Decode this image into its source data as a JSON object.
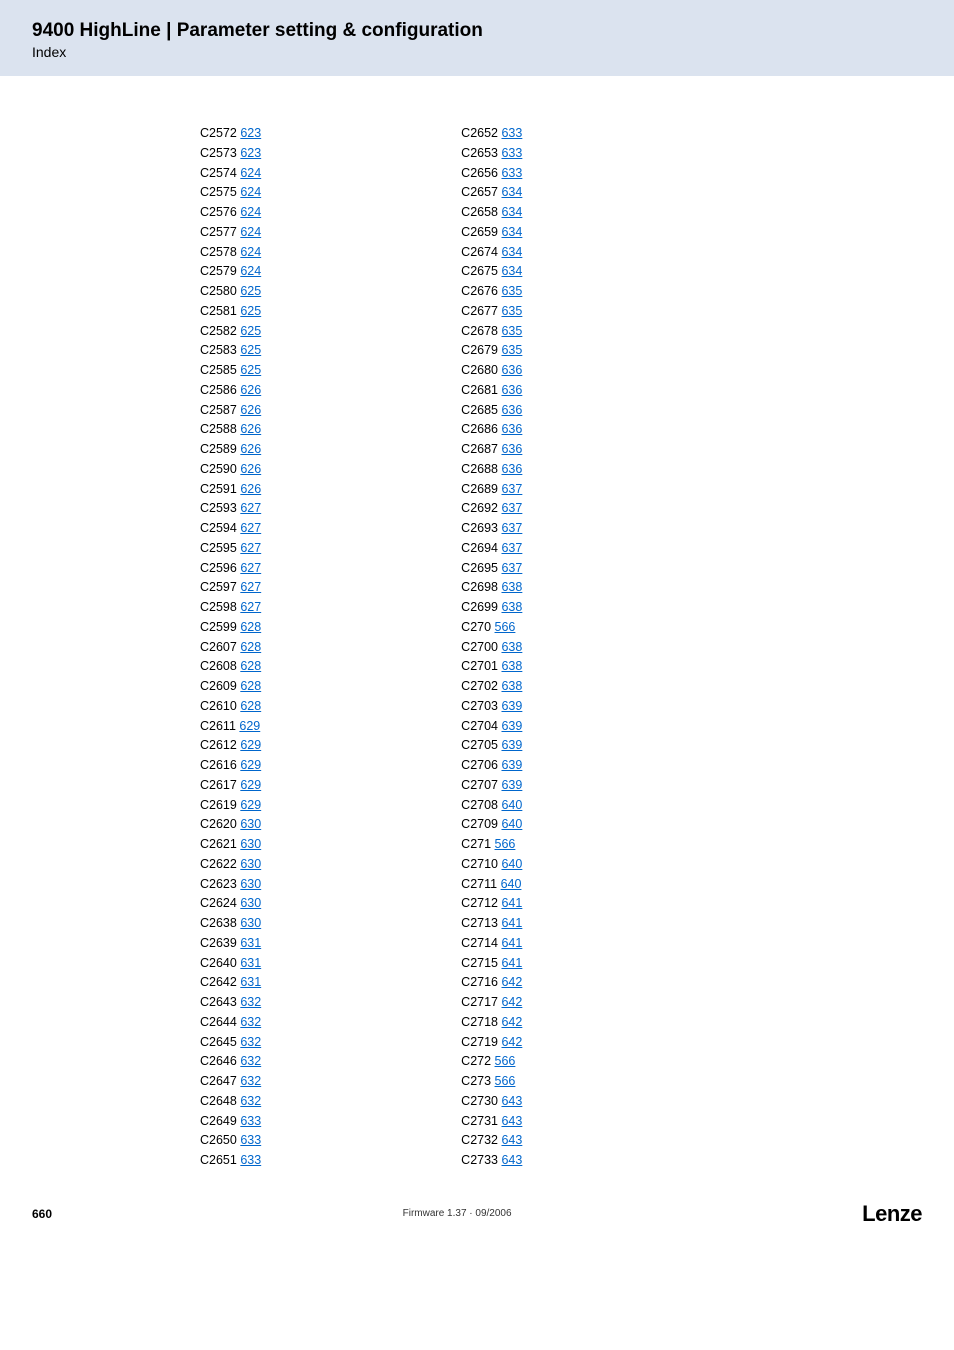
{
  "header": {
    "title": "9400 HighLine | Parameter setting & configuration",
    "subtitle": "Index"
  },
  "columns": [
    [
      {
        "code": "C2572",
        "page": "623"
      },
      {
        "code": "C2573",
        "page": "623"
      },
      {
        "code": "C2574",
        "page": "624"
      },
      {
        "code": "C2575",
        "page": "624"
      },
      {
        "code": "C2576",
        "page": "624"
      },
      {
        "code": "C2577",
        "page": "624"
      },
      {
        "code": "C2578",
        "page": "624"
      },
      {
        "code": "C2579",
        "page": "624"
      },
      {
        "code": "C2580",
        "page": "625"
      },
      {
        "code": "C2581",
        "page": "625"
      },
      {
        "code": "C2582",
        "page": "625"
      },
      {
        "code": "C2583",
        "page": "625"
      },
      {
        "code": "C2585",
        "page": "625"
      },
      {
        "code": "C2586",
        "page": "626"
      },
      {
        "code": "C2587",
        "page": "626"
      },
      {
        "code": "C2588",
        "page": "626"
      },
      {
        "code": "C2589",
        "page": "626"
      },
      {
        "code": "C2590",
        "page": "626"
      },
      {
        "code": "C2591",
        "page": "626"
      },
      {
        "code": "C2593",
        "page": "627"
      },
      {
        "code": "C2594",
        "page": "627"
      },
      {
        "code": "C2595",
        "page": "627"
      },
      {
        "code": "C2596",
        "page": "627"
      },
      {
        "code": "C2597",
        "page": "627"
      },
      {
        "code": "C2598",
        "page": "627"
      },
      {
        "code": "C2599",
        "page": "628"
      },
      {
        "code": "C2607",
        "page": "628"
      },
      {
        "code": "C2608",
        "page": "628"
      },
      {
        "code": "C2609",
        "page": "628"
      },
      {
        "code": "C2610",
        "page": "628"
      },
      {
        "code": "C2611",
        "page": "629"
      },
      {
        "code": "C2612",
        "page": "629"
      },
      {
        "code": "C2616",
        "page": "629"
      },
      {
        "code": "C2617",
        "page": "629"
      },
      {
        "code": "C2619",
        "page": "629"
      },
      {
        "code": "C2620",
        "page": "630"
      },
      {
        "code": "C2621",
        "page": "630"
      },
      {
        "code": "C2622",
        "page": "630"
      },
      {
        "code": "C2623",
        "page": "630"
      },
      {
        "code": "C2624",
        "page": "630"
      },
      {
        "code": "C2638",
        "page": "630"
      },
      {
        "code": "C2639",
        "page": "631"
      },
      {
        "code": "C2640",
        "page": "631"
      },
      {
        "code": "C2642",
        "page": "631"
      },
      {
        "code": "C2643",
        "page": "632"
      },
      {
        "code": "C2644",
        "page": "632"
      },
      {
        "code": "C2645",
        "page": "632"
      },
      {
        "code": "C2646",
        "page": "632"
      },
      {
        "code": "C2647",
        "page": "632"
      },
      {
        "code": "C2648",
        "page": "632"
      },
      {
        "code": "C2649",
        "page": "633"
      },
      {
        "code": "C2650",
        "page": "633"
      },
      {
        "code": "C2651",
        "page": "633"
      }
    ],
    [
      {
        "code": "C2652",
        "page": "633"
      },
      {
        "code": "C2653",
        "page": "633"
      },
      {
        "code": "C2656",
        "page": "633"
      },
      {
        "code": "C2657",
        "page": "634"
      },
      {
        "code": "C2658",
        "page": "634"
      },
      {
        "code": "C2659",
        "page": "634"
      },
      {
        "code": "C2674",
        "page": "634"
      },
      {
        "code": "C2675",
        "page": "634"
      },
      {
        "code": "C2676",
        "page": "635"
      },
      {
        "code": "C2677",
        "page": "635"
      },
      {
        "code": "C2678",
        "page": "635"
      },
      {
        "code": "C2679",
        "page": "635"
      },
      {
        "code": "C2680",
        "page": "636"
      },
      {
        "code": "C2681",
        "page": "636"
      },
      {
        "code": "C2685",
        "page": "636"
      },
      {
        "code": "C2686",
        "page": "636"
      },
      {
        "code": "C2687",
        "page": "636"
      },
      {
        "code": "C2688",
        "page": "636"
      },
      {
        "code": "C2689",
        "page": "637"
      },
      {
        "code": "C2692",
        "page": "637"
      },
      {
        "code": "C2693",
        "page": "637"
      },
      {
        "code": "C2694",
        "page": "637"
      },
      {
        "code": "C2695",
        "page": "637"
      },
      {
        "code": "C2698",
        "page": "638"
      },
      {
        "code": "C2699",
        "page": "638"
      },
      {
        "code": "C270",
        "page": "566"
      },
      {
        "code": "C2700",
        "page": "638"
      },
      {
        "code": "C2701",
        "page": "638"
      },
      {
        "code": "C2702",
        "page": "638"
      },
      {
        "code": "C2703",
        "page": "639"
      },
      {
        "code": "C2704",
        "page": "639"
      },
      {
        "code": "C2705",
        "page": "639"
      },
      {
        "code": "C2706",
        "page": "639"
      },
      {
        "code": "C2707",
        "page": "639"
      },
      {
        "code": "C2708",
        "page": "640"
      },
      {
        "code": "C2709",
        "page": "640"
      },
      {
        "code": "C271",
        "page": "566"
      },
      {
        "code": "C2710",
        "page": "640"
      },
      {
        "code": "C2711",
        "page": "640"
      },
      {
        "code": "C2712",
        "page": "641"
      },
      {
        "code": "C2713",
        "page": "641"
      },
      {
        "code": "C2714",
        "page": "641"
      },
      {
        "code": "C2715",
        "page": "641"
      },
      {
        "code": "C2716",
        "page": "642"
      },
      {
        "code": "C2717",
        "page": "642"
      },
      {
        "code": "C2718",
        "page": "642"
      },
      {
        "code": "C2719",
        "page": "642"
      },
      {
        "code": "C272",
        "page": "566"
      },
      {
        "code": "C273",
        "page": "566"
      },
      {
        "code": "C2730",
        "page": "643"
      },
      {
        "code": "C2731",
        "page": "643"
      },
      {
        "code": "C2732",
        "page": "643"
      },
      {
        "code": "C2733",
        "page": "643"
      }
    ]
  ],
  "footer": {
    "page_number": "660",
    "firmware": "Firmware 1.37 · 09/2006",
    "brand": "Lenze"
  }
}
